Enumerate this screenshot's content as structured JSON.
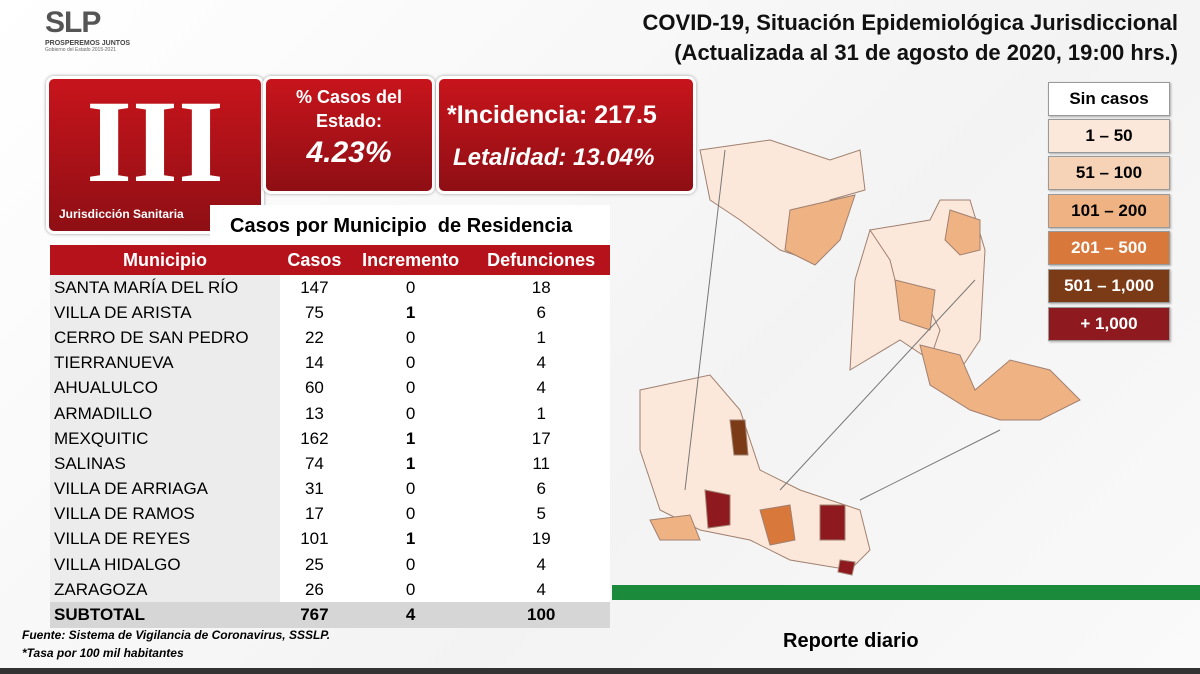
{
  "logo": {
    "mark": "SLP",
    "tagline": "PROSPEREMOS JUNTOS",
    "subline": "Gobierno del Estado 2015-2021"
  },
  "header": {
    "title": "COVID-19, Situación Epidemiológica Jurisdiccional",
    "subtitle": "(Actualizada al 31 de agosto de 2020, 19:00 hrs.)"
  },
  "jurisdiction": {
    "number": "III",
    "label": "Jurisdicción Sanitaria"
  },
  "state_share": {
    "label_line1": "% Casos del",
    "label_line2": "Estado:",
    "value": "4.23%"
  },
  "rates": {
    "incidence": "*Incidencia: 217.5",
    "lethality": "Letalidad: 13.04%"
  },
  "legend": [
    {
      "label": "Sin casos",
      "color": "#ffffff",
      "text_color": "#000000"
    },
    {
      "label": "1 – 50",
      "color": "#fbe8da",
      "text_color": "#000000"
    },
    {
      "label": "51 – 100",
      "color": "#f6d2b6",
      "text_color": "#000000"
    },
    {
      "label": "101 – 200",
      "color": "#efb283",
      "text_color": "#000000"
    },
    {
      "label": "201 – 500",
      "color": "#d8783a",
      "text_color": "#ffffff"
    },
    {
      "label": "501 – 1,000",
      "color": "#7b3b17",
      "text_color": "#ffffff"
    },
    {
      "label": "+ 1,000",
      "color": "#8e1a1f",
      "text_color": "#ffffff"
    }
  ],
  "table": {
    "title": "Casos por Municipio  de Residencia",
    "columns": [
      "Municipio",
      "Casos",
      "Incremento",
      "Defunciones"
    ],
    "rows": [
      [
        "SANTA MARÍA DEL RÍO",
        147,
        0,
        18
      ],
      [
        "VILLA DE ARISTA",
        75,
        1,
        6
      ],
      [
        "CERRO DE SAN PEDRO",
        22,
        0,
        1
      ],
      [
        "TIERRANUEVA",
        14,
        0,
        4
      ],
      [
        "AHUALULCO",
        60,
        0,
        4
      ],
      [
        "ARMADILLO",
        13,
        0,
        1
      ],
      [
        "MEXQUITIC",
        162,
        1,
        17
      ],
      [
        "SALINAS",
        74,
        1,
        11
      ],
      [
        "VILLA DE ARRIAGA",
        31,
        0,
        6
      ],
      [
        "VILLA DE RAMOS",
        17,
        0,
        5
      ],
      [
        "VILLA DE REYES",
        101,
        1,
        19
      ],
      [
        "VILLA HIDALGO",
        25,
        0,
        4
      ],
      [
        "ZARAGOZA",
        26,
        0,
        4
      ]
    ],
    "total": [
      "SUBTOTAL",
      767,
      4,
      100
    ]
  },
  "footnotes": [
    "Fuente: Sistema de Vigilancia de Coronavirus, SSSLP.",
    "*Tasa por 100 mil habitantes"
  ],
  "footer": {
    "label": "Reporte diario"
  }
}
